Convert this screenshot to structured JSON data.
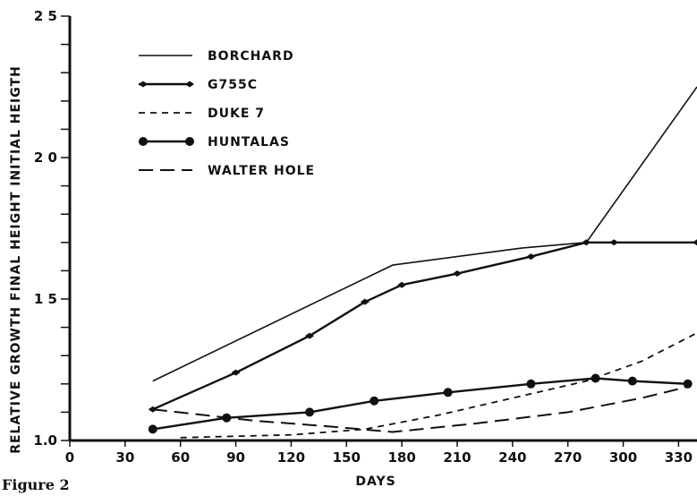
{
  "chart_data": {
    "type": "line",
    "title": "",
    "xlabel": "DAYS",
    "ylabel": "RELATIVE GROWTH  FINAL HEIGHT INITIAL HEIGTH",
    "xlim": [
      0,
      340
    ],
    "ylim": [
      1.0,
      2.5
    ],
    "x_ticks": [
      0,
      30,
      60,
      90,
      120,
      150,
      180,
      210,
      240,
      270,
      300,
      330
    ],
    "x_tick_labels": [
      "0",
      "30",
      "60",
      "90",
      "120",
      "150",
      "180",
      "210",
      "240",
      "270",
      "300",
      "330"
    ],
    "y_ticks": [
      1.0,
      1.5,
      2.0,
      2.5
    ],
    "y_tick_labels": [
      "1.0",
      "1 5",
      "2 0",
      "2 5"
    ],
    "grid": false,
    "legend_position": "top-left",
    "series": [
      {
        "name": "BORCHARD",
        "style": "solid-thin",
        "marker": "none",
        "x": [
          45,
          175,
          245,
          280,
          340
        ],
        "y": [
          1.21,
          1.62,
          1.68,
          1.7,
          2.25
        ]
      },
      {
        "name": "G755C",
        "style": "solid",
        "marker": "diamond",
        "x": [
          45,
          90,
          130,
          160,
          180,
          210,
          250,
          280,
          295,
          340
        ],
        "y": [
          1.11,
          1.24,
          1.37,
          1.49,
          1.55,
          1.59,
          1.65,
          1.7,
          1.7,
          1.7
        ]
      },
      {
        "name": "DUKE 7",
        "style": "dashed-short",
        "marker": "none",
        "x": [
          60,
          120,
          160,
          200,
          240,
          280,
          310,
          340
        ],
        "y": [
          1.01,
          1.02,
          1.04,
          1.09,
          1.15,
          1.21,
          1.28,
          1.38
        ]
      },
      {
        "name": "HUNTALAS",
        "style": "solid",
        "marker": "circle",
        "x": [
          45,
          85,
          130,
          165,
          205,
          250,
          285,
          305,
          335
        ],
        "y": [
          1.04,
          1.08,
          1.1,
          1.14,
          1.17,
          1.2,
          1.22,
          1.21,
          1.2
        ]
      },
      {
        "name": "WALTER HOLE",
        "style": "dashed-long",
        "marker": "none",
        "x": [
          45,
          100,
          140,
          175,
          220,
          270,
          310,
          335
        ],
        "y": [
          1.11,
          1.07,
          1.05,
          1.03,
          1.06,
          1.1,
          1.15,
          1.19
        ]
      }
    ]
  },
  "caption": "Figure 2"
}
